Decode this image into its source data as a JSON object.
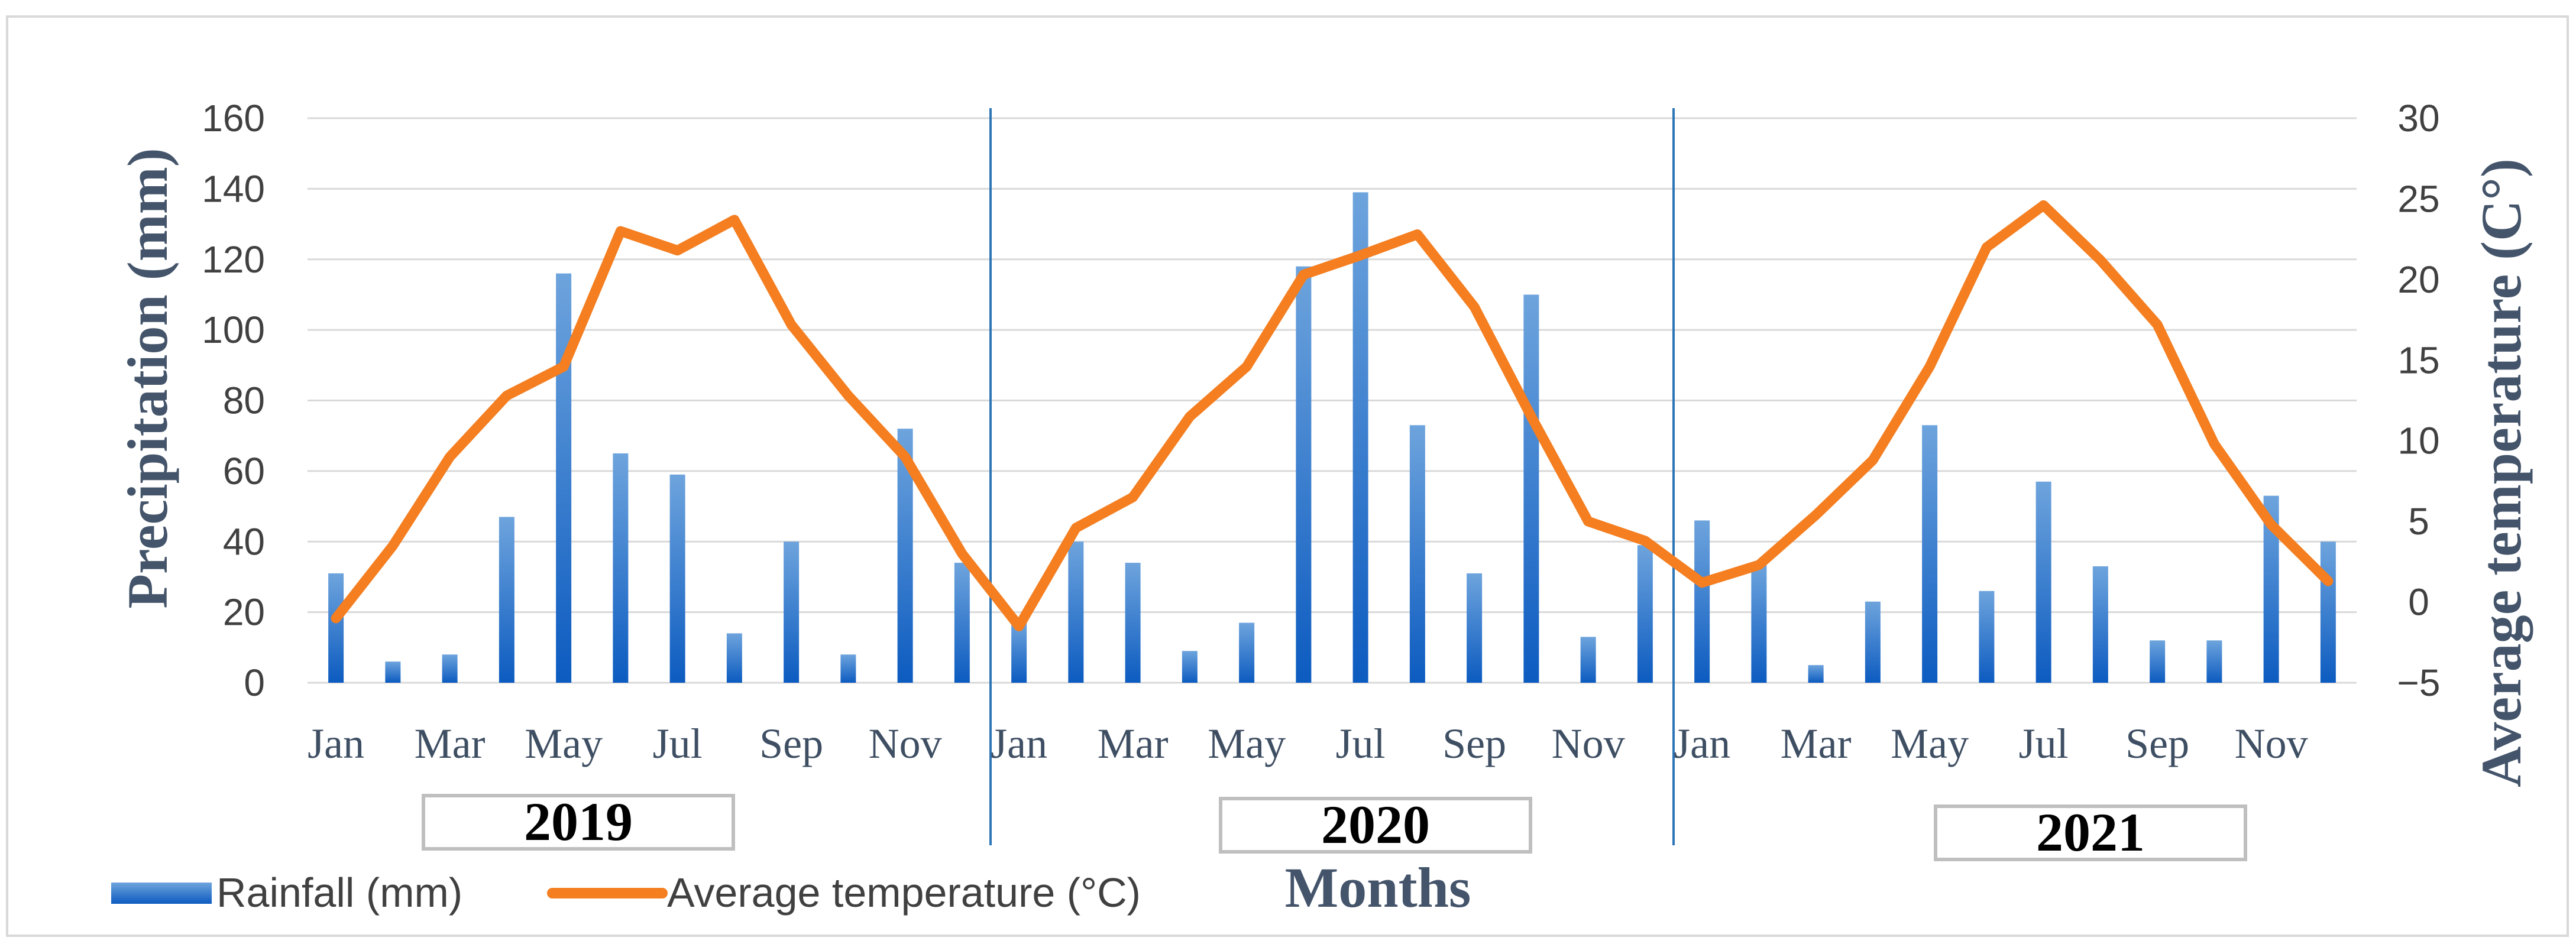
{
  "chart_data": {
    "type": "bar+line",
    "title": "",
    "xlabel": "Months",
    "ylabel_left": "Precipitation (mm)",
    "ylabel_right": "Average temperature (C°)",
    "ylim_left": [
      0,
      160
    ],
    "yticks_left": [
      "0",
      "20",
      "40",
      "60",
      "80",
      "100",
      "120",
      "140",
      "160"
    ],
    "ylim_right": [
      -5,
      30
    ],
    "yticks_right": [
      "−5",
      "0",
      "5",
      "10",
      "15",
      "20",
      "25",
      "30"
    ],
    "grid": true,
    "legend_position": "bottom-left",
    "years": [
      "2019",
      "2020",
      "2021"
    ],
    "month_tick_labels": [
      "Jan",
      "Mar",
      "May",
      "Jul",
      "Sep",
      "Nov",
      "Jan",
      "Mar",
      "May",
      "Jul",
      "Sep",
      "Nov",
      "Jan",
      "Mar",
      "May",
      "Jul",
      "Sep",
      "Nov"
    ],
    "series": [
      {
        "name": "Rainfall (mm)",
        "type": "bar",
        "color": "#1565c0",
        "values": [
          31,
          6,
          8,
          47,
          116,
          65,
          59,
          14,
          40,
          8,
          72,
          34,
          17,
          40,
          34,
          9,
          17,
          118,
          139,
          73,
          31,
          110,
          13,
          39,
          46,
          34,
          5,
          23,
          73,
          26,
          57,
          33,
          12,
          12,
          53,
          40
        ]
      },
      {
        "name": "Average temperature (°C)",
        "type": "line",
        "color": "#f47e20",
        "values": [
          -1.0,
          3.5,
          9.0,
          12.8,
          14.6,
          23.0,
          21.8,
          23.7,
          17.2,
          12.8,
          9.0,
          3.0,
          -1.5,
          4.6,
          6.5,
          11.5,
          14.6,
          20.3,
          21.5,
          22.8,
          18.3,
          11.5,
          5.0,
          3.8,
          1.2,
          2.3,
          5.4,
          8.8,
          14.6,
          22.0,
          24.6,
          21.2,
          17.2,
          9.8,
          4.8,
          1.3
        ]
      }
    ]
  }
}
